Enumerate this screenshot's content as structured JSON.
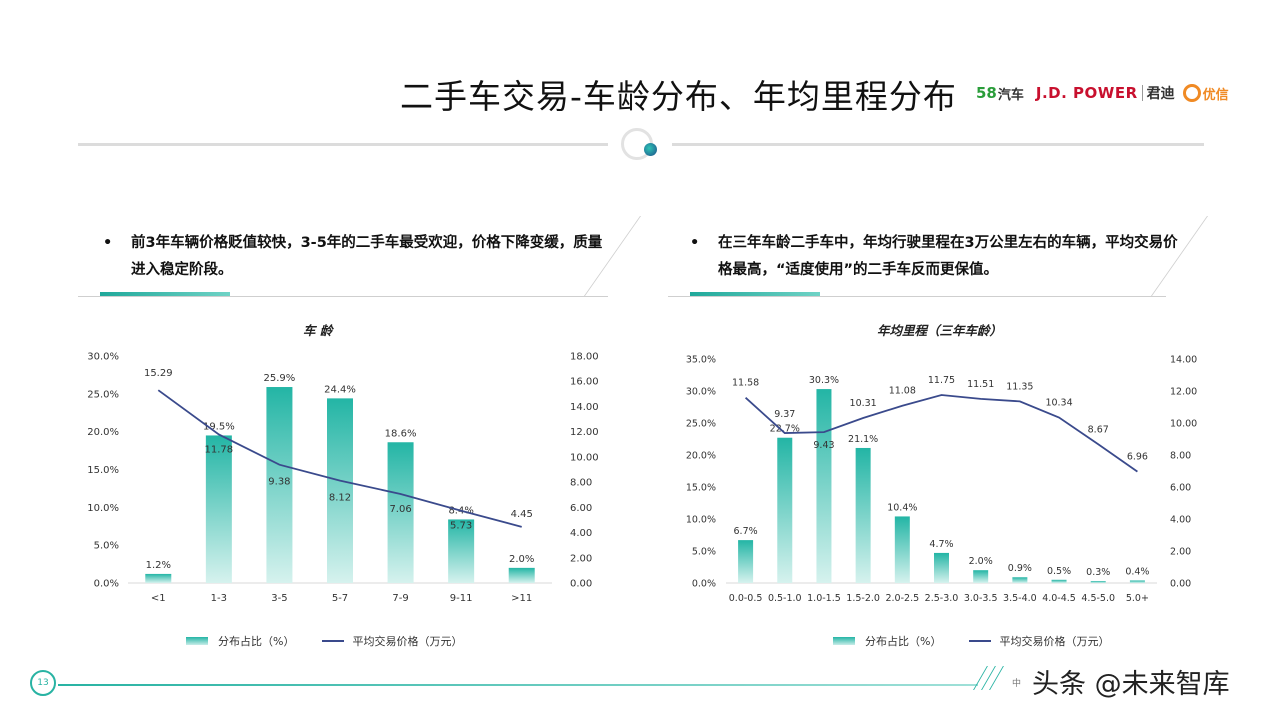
{
  "page": {
    "title": "二手车交易-车龄分布、年均里程分布",
    "page_number": "13",
    "watermark": "头条 @未来智库",
    "watermark_small": "中"
  },
  "logos": {
    "logo_58_number": "58",
    "logo_58_text": "汽车",
    "jdpower": "J.D. POWER",
    "jundi": "君迪",
    "youxin": "优信"
  },
  "bullets": {
    "bullet_char": "•",
    "left": "前3年车辆价格贬值较快，3-5年的二手车最受欢迎，价格下降变缓，质量进入稳定阶段。",
    "right": "在三年车龄二手车中，年均行驶里程在3万公里左右的车辆，平均交易价格最高，“适度使用”的二手车反而更保值。"
  },
  "colors": {
    "bar_top": "#23b5a5",
    "bar_bottom": "#d6f2ee",
    "line": "#3a4a8c",
    "accent": "#28b3a3"
  },
  "chart_data": [
    {
      "type": "bar",
      "title": "车 龄",
      "categories": [
        "<1",
        "1-3",
        "3-5",
        "5-7",
        "7-9",
        "9-11",
        ">11"
      ],
      "series": [
        {
          "name": "分布占比（%）",
          "type": "bar",
          "axis": "left",
          "values": [
            1.2,
            19.5,
            25.9,
            24.4,
            18.6,
            8.4,
            2.0
          ],
          "labels": [
            "1.2%",
            "19.5%",
            "25.9%",
            "24.4%",
            "18.6%",
            "8.4%",
            "2.0%"
          ]
        },
        {
          "name": "平均交易价格（万元）",
          "type": "line",
          "axis": "right",
          "values": [
            15.29,
            11.78,
            9.38,
            8.12,
            7.06,
            5.73,
            4.45
          ],
          "labels": [
            "15.29",
            "11.78",
            "9.38",
            "8.12",
            "7.06",
            "5.73",
            "4.45"
          ]
        }
      ],
      "left_axis": {
        "min": 0,
        "max": 30,
        "ticks": [
          "0.0%",
          "5.0%",
          "10.0%",
          "15.0%",
          "20.0%",
          "25.0%",
          "30.0%"
        ]
      },
      "right_axis": {
        "min": 0,
        "max": 18,
        "ticks": [
          "0.00",
          "2.00",
          "4.00",
          "6.00",
          "8.00",
          "10.00",
          "12.00",
          "14.00",
          "16.00",
          "18.00"
        ]
      },
      "legend_placement": "bottom",
      "grid": false
    },
    {
      "type": "bar",
      "title": "年均里程（三年车龄）",
      "categories": [
        "0.0-0.5",
        "0.5-1.0",
        "1.0-1.5",
        "1.5-2.0",
        "2.0-2.5",
        "2.5-3.0",
        "3.0-3.5",
        "3.5-4.0",
        "4.0-4.5",
        "4.5-5.0",
        "5.0+"
      ],
      "series": [
        {
          "name": "分布占比（%）",
          "type": "bar",
          "axis": "left",
          "values": [
            6.7,
            22.7,
            30.3,
            21.1,
            10.4,
            4.7,
            2.0,
            0.9,
            0.5,
            0.3,
            0.4
          ],
          "labels": [
            "6.7%",
            "22.7%",
            "30.3%",
            "21.1%",
            "10.4%",
            "4.7%",
            "2.0%",
            "0.9%",
            "0.5%",
            "0.3%",
            "0.4%"
          ]
        },
        {
          "name": "平均交易价格（万元）",
          "type": "line",
          "axis": "right",
          "values": [
            11.58,
            9.37,
            9.43,
            10.31,
            11.08,
            11.75,
            11.51,
            11.35,
            10.34,
            8.67,
            6.96
          ],
          "labels": [
            "11.58",
            "9.37",
            "9.43",
            "10.31",
            "11.08",
            "11.75",
            "11.51",
            "11.35",
            "10.34",
            "8.67",
            "6.96"
          ]
        }
      ],
      "left_axis": {
        "min": 0,
        "max": 35,
        "ticks": [
          "0.0%",
          "5.0%",
          "10.0%",
          "15.0%",
          "20.0%",
          "25.0%",
          "30.0%",
          "35.0%"
        ]
      },
      "right_axis": {
        "min": 0,
        "max": 14,
        "ticks": [
          "0.00",
          "2.00",
          "4.00",
          "6.00",
          "8.00",
          "10.00",
          "12.00",
          "14.00"
        ]
      },
      "legend_placement": "bottom",
      "grid": false
    }
  ]
}
